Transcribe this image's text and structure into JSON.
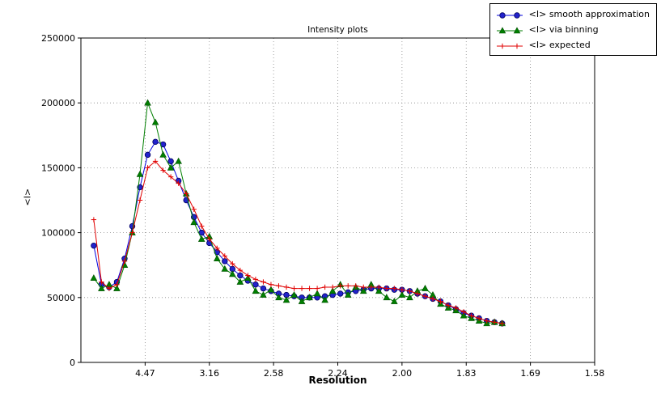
{
  "chart_data": {
    "type": "line",
    "title": "Intensity plots",
    "xlabel": "Resolution",
    "ylabel": "<I>",
    "grid": "dotted",
    "legend_position": "upper-right-outside",
    "x_axis": {
      "scale": "1/d^2",
      "range": [
        0,
        0.4
      ],
      "tick_positions": [
        0.05,
        0.1,
        0.15,
        0.2,
        0.25,
        0.3,
        0.35,
        0.4
      ],
      "tick_labels": [
        "4.47",
        "3.16",
        "2.58",
        "2.24",
        "2.00",
        "1.83",
        "1.69",
        "1.58"
      ]
    },
    "y_axis": {
      "range": [
        0,
        250000
      ],
      "tick_positions": [
        0,
        50000,
        100000,
        150000,
        200000,
        250000
      ],
      "tick_labels": [
        "0",
        "50000",
        "100000",
        "150000",
        "200000",
        "250000"
      ]
    },
    "x": [
      0.01,
      0.016,
      0.022,
      0.028,
      0.034,
      0.04,
      0.046,
      0.052,
      0.058,
      0.064,
      0.07,
      0.076,
      0.082,
      0.088,
      0.094,
      0.1,
      0.106,
      0.112,
      0.118,
      0.124,
      0.13,
      0.136,
      0.142,
      0.148,
      0.154,
      0.16,
      0.166,
      0.172,
      0.178,
      0.184,
      0.19,
      0.196,
      0.202,
      0.208,
      0.214,
      0.22,
      0.226,
      0.232,
      0.238,
      0.244,
      0.25,
      0.256,
      0.262,
      0.268,
      0.274,
      0.28,
      0.286,
      0.292,
      0.298,
      0.304,
      0.31,
      0.316,
      0.322,
      0.328
    ],
    "series": [
      {
        "name": "<I> smooth approximation",
        "color": "#0000e0",
        "marker": "circle",
        "marker_face": "#2222cc",
        "marker_edge": "#000060",
        "values": [
          90000,
          60000,
          58000,
          62000,
          80000,
          105000,
          135000,
          160000,
          170000,
          168000,
          155000,
          140000,
          125000,
          112000,
          100000,
          92000,
          85000,
          78000,
          72000,
          67000,
          63000,
          60000,
          57000,
          55000,
          53000,
          52000,
          51000,
          50000,
          50000,
          50000,
          51000,
          52000,
          53000,
          54000,
          55000,
          56000,
          57000,
          57000,
          57000,
          56000,
          56000,
          55000,
          53000,
          51000,
          49000,
          47000,
          44000,
          41000,
          38000,
          36000,
          34000,
          32000,
          31000,
          30000
        ]
      },
      {
        "name": "<I> via binning",
        "color": "#007f00",
        "marker": "triangle",
        "marker_face": "#007f00",
        "marker_edge": "#004d00",
        "values": [
          65000,
          57000,
          60000,
          57000,
          75000,
          100000,
          145000,
          200000,
          185000,
          160000,
          150000,
          155000,
          130000,
          108000,
          95000,
          97000,
          80000,
          72000,
          68000,
          62000,
          65000,
          55000,
          52000,
          56000,
          50000,
          48000,
          52000,
          47000,
          50000,
          53000,
          48000,
          55000,
          60000,
          52000,
          58000,
          55000,
          60000,
          55000,
          50000,
          47000,
          52000,
          50000,
          55000,
          57000,
          52000,
          45000,
          42000,
          40000,
          36000,
          34000,
          32000,
          30000,
          31000,
          30000
        ]
      },
      {
        "name": "<I> expected",
        "color": "#e00000",
        "marker": "plus",
        "marker_face": "#e00000",
        "marker_edge": "#e00000",
        "values": [
          110000,
          62000,
          57000,
          60000,
          78000,
          100000,
          125000,
          150000,
          155000,
          148000,
          143000,
          138000,
          130000,
          118000,
          105000,
          95000,
          88000,
          82000,
          76000,
          71000,
          67000,
          64000,
          62000,
          60000,
          59000,
          58000,
          57000,
          57000,
          57000,
          57000,
          58000,
          58000,
          59000,
          59000,
          59000,
          58000,
          58000,
          58000,
          57000,
          57000,
          56000,
          55000,
          53000,
          51000,
          49000,
          47000,
          44000,
          42000,
          39000,
          36000,
          34000,
          32000,
          31000,
          30000
        ]
      }
    ]
  }
}
